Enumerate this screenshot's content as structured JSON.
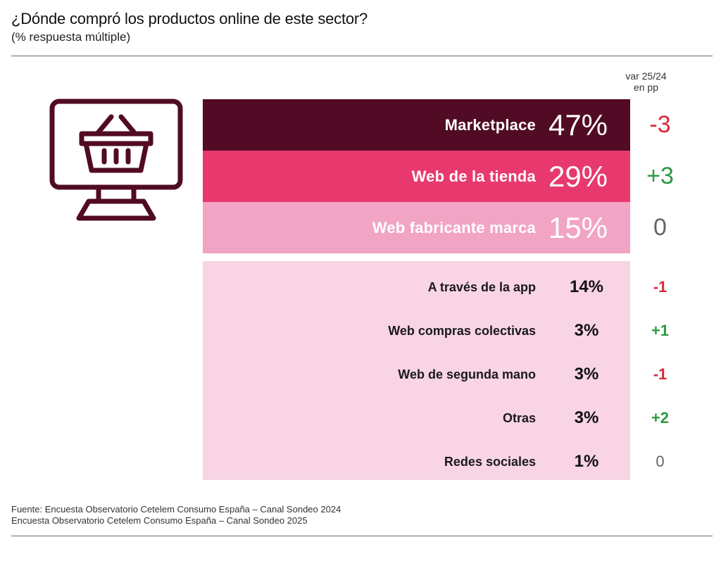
{
  "title": "¿Dónde compró los productos online de este sector?",
  "subtitle": "(% respuesta múltiple)",
  "var_header": [
    "var 25/24",
    "en pp"
  ],
  "icon": "shopping-basket-on-monitor-icon",
  "colors": {
    "marketplace": "#510b25",
    "web_tienda": "#e8396f",
    "web_fabricante": "#f2a4c4",
    "others_bg": "#f8d4e4",
    "negative": "#d62b36",
    "positive": "#2c9a45",
    "zero": "#666666"
  },
  "chart_data": {
    "type": "table",
    "categories": [
      "Marketplace",
      "Web de la tienda",
      "Web fabricante marca",
      "A través de la app",
      "Web compras colectivas",
      "Web de segunda mano",
      "Otras",
      "Redes sociales"
    ],
    "series": [
      {
        "name": "",
        "values": [
          47,
          29,
          15,
          14,
          3,
          3,
          3,
          1
        ]
      },
      {
        "name": "var 25/24 en pp",
        "values": [
          -3,
          3,
          0,
          -1,
          1,
          -1,
          2,
          0
        ]
      }
    ],
    "rows": [
      {
        "label": "Marketplace",
        "value": "47%",
        "var": "-3"
      },
      {
        "label": "Web de la tienda",
        "value": "29%",
        "var": "+3"
      },
      {
        "label": "Web fabricante marca",
        "value": "15%",
        "var": "0"
      },
      {
        "label": "A través de la app",
        "value": "14%",
        "var": "-1"
      },
      {
        "label": "Web compras colectivas",
        "value": "3%",
        "var": "+1"
      },
      {
        "label": "Web de segunda mano",
        "value": "3%",
        "var": "-1"
      },
      {
        "label": "Otras",
        "value": "3%",
        "var": "+2"
      },
      {
        "label": "Redes sociales",
        "value": "1%",
        "var": "0"
      }
    ]
  },
  "source": [
    "Fuente: Encuesta Observatorio Cetelem Consumo España – Canal Sondeo 2024",
    "Encuesta Observatorio Cetelem Consumo España – Canal Sondeo 2025"
  ]
}
